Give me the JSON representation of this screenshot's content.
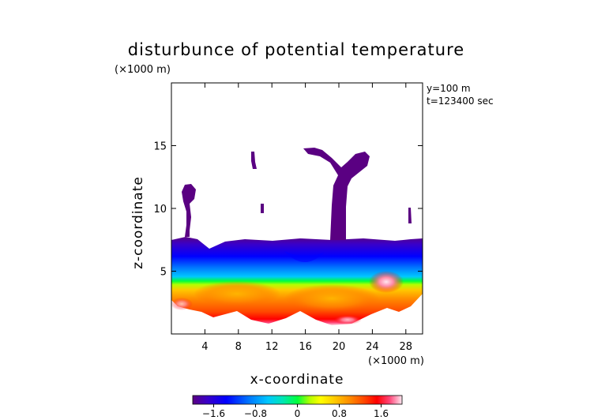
{
  "chart_data": {
    "type": "heatmap",
    "title": "disturbunce of potential temperature",
    "xlabel": "x-coordinate",
    "ylabel": "z-coordinate",
    "x_units": "(×1000 m)",
    "z_units": "(×1000 m)",
    "annotations": [
      "y=100 m",
      "t=123400 sec"
    ],
    "xlim": [
      0,
      30
    ],
    "ylim": [
      0,
      20
    ],
    "x_ticks": [
      4,
      8,
      12,
      16,
      20,
      24,
      28
    ],
    "y_ticks": [
      5,
      10,
      15
    ],
    "colorbar": {
      "range": [
        -2.0,
        2.0
      ],
      "ticks": [
        "−1.6",
        "−0.8",
        "0",
        "0.8",
        "1.6"
      ],
      "tick_values": [
        -1.6,
        -0.8,
        0,
        0.8,
        1.6
      ],
      "colors": [
        "#5a0082",
        "#3a00c8",
        "#0000ff",
        "#0078ff",
        "#00c8ff",
        "#00e6b4",
        "#00ff3c",
        "#b4ff00",
        "#ffff00",
        "#ffc800",
        "#ff8c00",
        "#ff4600",
        "#ff0000",
        "#ff4678",
        "#ffb4c8",
        "#ffe6f0"
      ]
    },
    "regions": [
      {
        "name": "negative anomaly layer",
        "value_approx": -1.6,
        "z_range": [
          6.8,
          7.8
        ]
      },
      {
        "name": "cold blue band",
        "value_approx": -1.0,
        "z_range": [
          5.5,
          6.8
        ]
      },
      {
        "name": "warm lower layer",
        "value_approx": 1.0,
        "z_range": [
          1,
          5.2
        ]
      },
      {
        "name": "strong warm spot",
        "value_approx": 1.8,
        "x": 25.5,
        "z": 4.4
      },
      {
        "name": "rising plume",
        "value_approx": -1.6,
        "x": 20.5,
        "z_range": [
          7.8,
          15
        ]
      }
    ]
  }
}
